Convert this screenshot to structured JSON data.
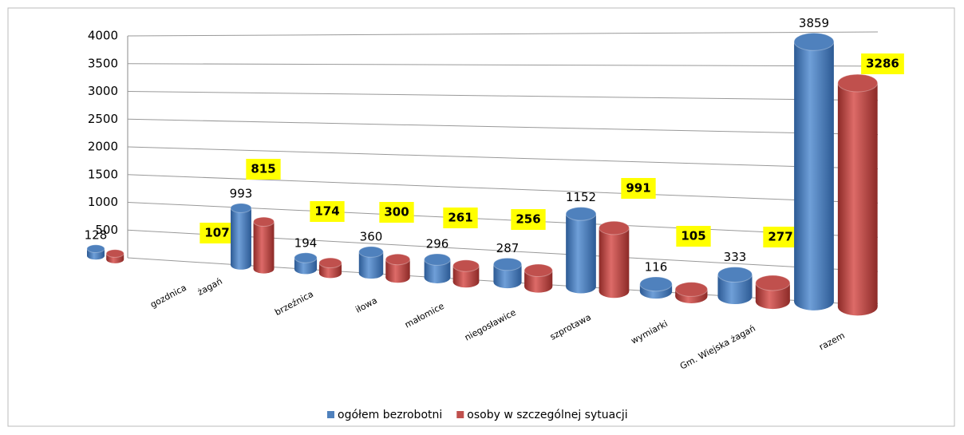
{
  "chart_data": {
    "type": "bar",
    "categories": [
      "gozdnica",
      "żagań",
      "brzeźnica",
      "iłowa",
      "małomice",
      "niegosławice",
      "szprotawa",
      "wymiarki",
      "Gm. Wiejska żagań",
      "razem"
    ],
    "series": [
      {
        "name": "ogółem bezrobotni",
        "color": "#4f81bd",
        "values": [
          128,
          993,
          194,
          360,
          296,
          287,
          1152,
          116,
          333,
          3859
        ]
      },
      {
        "name": "osoby w szczególnej sytuacji",
        "color": "#c0504d",
        "values": [
          107,
          815,
          174,
          300,
          261,
          256,
          991,
          105,
          277,
          3286
        ]
      }
    ],
    "ylim": [
      0,
      4000
    ],
    "yticks": [
      0,
      500,
      1000,
      1500,
      2000,
      2500,
      3000,
      3500,
      4000
    ],
    "grid": true,
    "legend": "bottom"
  }
}
